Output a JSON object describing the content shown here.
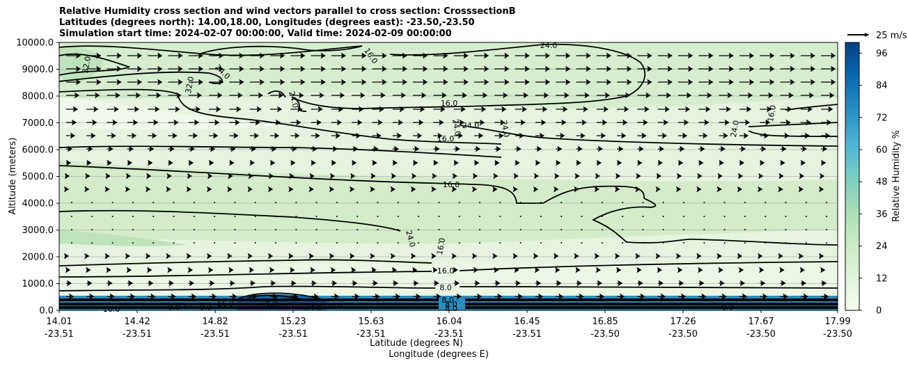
{
  "title": {
    "line1": "Relative Humidity cross section and wind vectors parallel to cross section: CrosssectionB",
    "line2": "Latitudes (degrees north): 14.00,18.00, Longitudes (degrees east): -23.50,-23.50",
    "line3": "Simulation start time: 2024-02-07 00:00:00, Valid time: 2024-02-09 00:00:00"
  },
  "chart_data": {
    "type": "contour",
    "title": "Relative Humidity cross section and wind vectors parallel to cross section: CrosssectionB",
    "ylabel": "Altitude (meters)",
    "xlabel_lat": "Latitude (degrees N)",
    "xlabel_lon": "Longitude (degrees E)",
    "ylim": [
      0,
      10000
    ],
    "y_ticks": [
      "10000.0",
      "9000.0",
      "8000.0",
      "7000.0",
      "6000.0",
      "5000.0",
      "4000.0",
      "3000.0",
      "2000.0",
      "1000.0",
      "0.0"
    ],
    "y_tick_values": [
      10000,
      9000,
      8000,
      7000,
      6000,
      5000,
      4000,
      3000,
      2000,
      1000,
      0
    ],
    "x_ticks": [
      {
        "lat": "14.01",
        "lon": "-23.51"
      },
      {
        "lat": "14.42",
        "lon": "-23.51"
      },
      {
        "lat": "14.82",
        "lon": "-23.51"
      },
      {
        "lat": "15.23",
        "lon": "-23.51"
      },
      {
        "lat": "15.63",
        "lon": "-23.51"
      },
      {
        "lat": "16.04",
        "lon": "-23.51"
      },
      {
        "lat": "16.45",
        "lon": "-23.51"
      },
      {
        "lat": "16.85",
        "lon": "-23.50"
      },
      {
        "lat": "17.26",
        "lon": "-23.50"
      },
      {
        "lat": "17.67",
        "lon": "-23.50"
      },
      {
        "lat": "17.99",
        "lon": "-23.50"
      }
    ],
    "colorbar": {
      "label": "Relative Humidity %",
      "ticks": [
        "0",
        "12",
        "24",
        "36",
        "48",
        "60",
        "72",
        "84",
        "96"
      ],
      "tick_values": [
        0,
        12,
        24,
        36,
        48,
        60,
        72,
        84,
        96
      ],
      "range": [
        0,
        100
      ]
    },
    "contour_labels": [
      "32.0",
      "24.0",
      "32.0",
      "16.0",
      "24.0",
      "16.0",
      "24.0",
      "24.0",
      "24.0",
      "16.0",
      "24.0",
      "16.0",
      "16.0",
      "16.0",
      "24.0",
      "24.0",
      "16.0",
      "8.0",
      "8.0",
      "16.0",
      "8.0",
      "24.0",
      "8.0",
      "8.0",
      "16.0",
      "8.0",
      "8.0",
      "24.0",
      "8.0",
      "8.0"
    ],
    "wind_key": {
      "label": "25 m/s",
      "value": 25
    }
  },
  "colors": {
    "colormap": [
      "#f7fcf0",
      "#e0f3db",
      "#ccebc5",
      "#a8ddb5",
      "#7bccc4",
      "#4eb3d3",
      "#2b8cbe",
      "#0868ac",
      "#084081"
    ],
    "contour": "#000000"
  }
}
